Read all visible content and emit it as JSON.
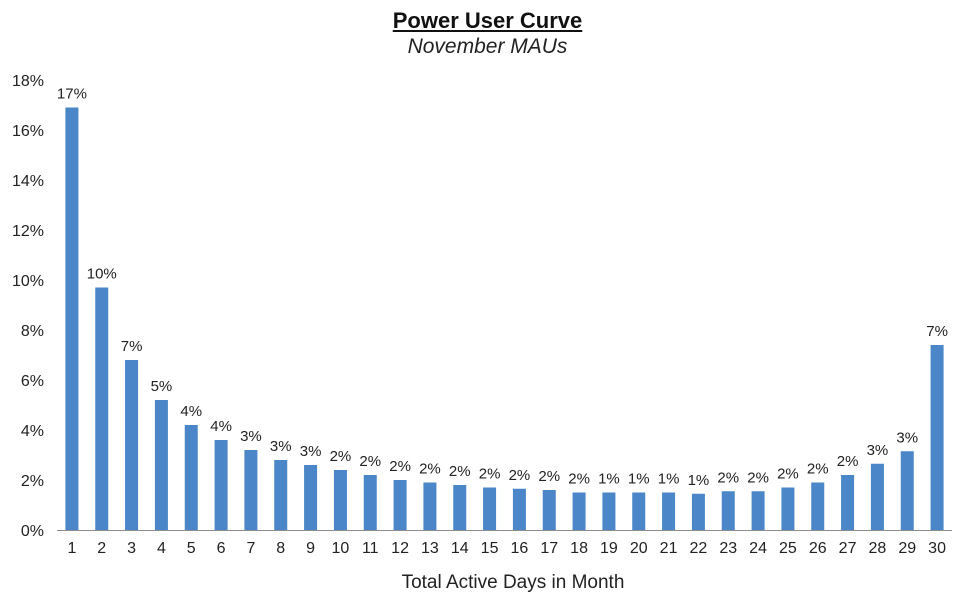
{
  "chart_data": {
    "type": "bar",
    "title": "Power User Curve",
    "subtitle": "November MAUs",
    "xlabel": "Total Active Days in Month",
    "ylabel": "",
    "ylim": [
      0,
      18
    ],
    "y_ticks": [
      0,
      2,
      4,
      6,
      8,
      10,
      12,
      14,
      16,
      18
    ],
    "y_tick_labels": [
      "0%",
      "2%",
      "4%",
      "6%",
      "8%",
      "10%",
      "12%",
      "14%",
      "16%",
      "18%"
    ],
    "grid": false,
    "legend": "none",
    "bar_color": "#4a86c8",
    "categories": [
      "1",
      "2",
      "3",
      "4",
      "5",
      "6",
      "7",
      "8",
      "9",
      "10",
      "11",
      "12",
      "13",
      "14",
      "15",
      "16",
      "17",
      "18",
      "19",
      "20",
      "21",
      "22",
      "23",
      "24",
      "25",
      "26",
      "27",
      "28",
      "29",
      "30"
    ],
    "values": [
      16.9,
      9.7,
      6.8,
      5.2,
      4.2,
      3.6,
      3.2,
      2.8,
      2.6,
      2.4,
      2.2,
      2.0,
      1.9,
      1.8,
      1.7,
      1.65,
      1.6,
      1.5,
      1.5,
      1.5,
      1.5,
      1.45,
      1.55,
      1.55,
      1.7,
      1.9,
      2.2,
      2.65,
      3.15,
      7.4
    ],
    "data_labels": [
      "17%",
      "10%",
      "7%",
      "5%",
      "4%",
      "4%",
      "3%",
      "3%",
      "3%",
      "2%",
      "2%",
      "2%",
      "2%",
      "2%",
      "2%",
      "2%",
      "2%",
      "2%",
      "1%",
      "1%",
      "1%",
      "1%",
      "2%",
      "2%",
      "2%",
      "2%",
      "2%",
      "3%",
      "3%",
      "7%"
    ]
  }
}
